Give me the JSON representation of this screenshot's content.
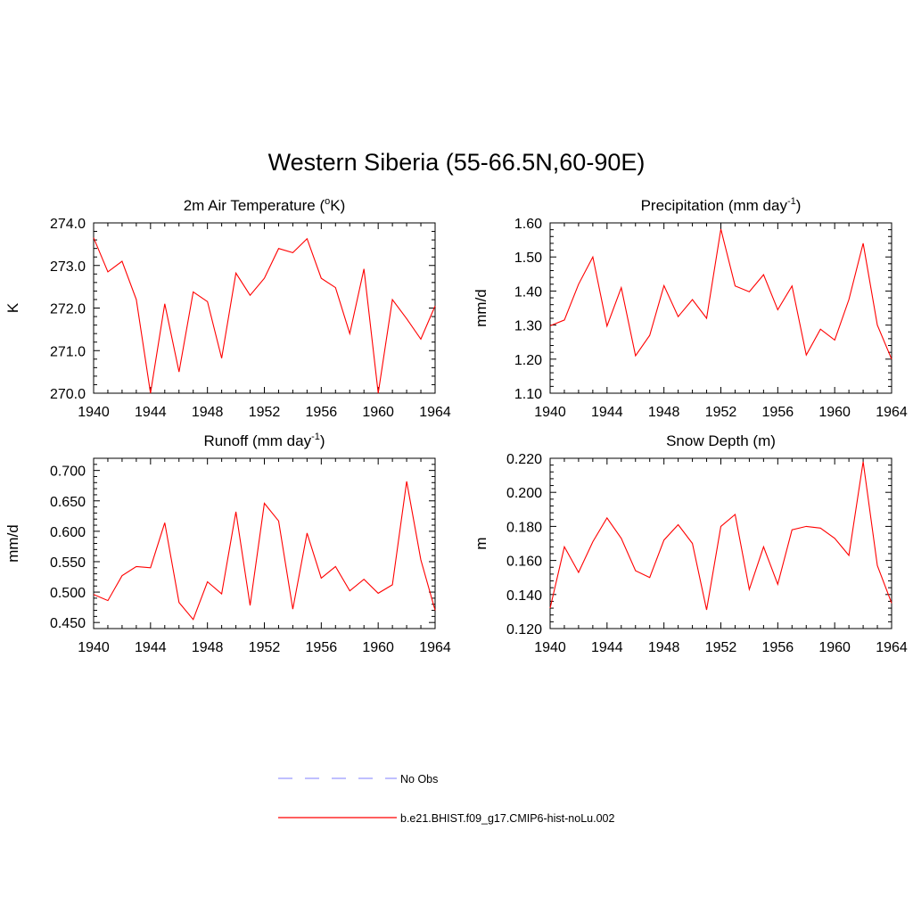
{
  "title": "Western Siberia (55-66.5N,60-90E)",
  "chart_data": [
    {
      "type": "line",
      "title": "2m Air Temperature (",
      "title_sup": "o",
      "title_after": "K)",
      "ylabel": "K",
      "xlim": [
        1940,
        1964
      ],
      "ylim": [
        270.0,
        274.0
      ],
      "yticks": [
        "270.0",
        "271.0",
        "272.0",
        "273.0",
        "274.0"
      ],
      "xticks": [
        "1940",
        "1944",
        "1948",
        "1952",
        "1956",
        "1960",
        "1964"
      ],
      "series": [
        {
          "color": "#ff0000",
          "x": [
            1940,
            1941,
            1942,
            1943,
            1944,
            1945,
            1946,
            1947,
            1948,
            1949,
            1950,
            1951,
            1952,
            1953,
            1954,
            1955,
            1956,
            1957,
            1958,
            1959,
            1960,
            1961,
            1962,
            1963,
            1964
          ],
          "values": [
            273.65,
            272.85,
            273.1,
            272.2,
            270.0,
            272.1,
            270.5,
            272.38,
            272.15,
            270.82,
            272.82,
            272.3,
            272.7,
            273.4,
            273.3,
            273.63,
            272.7,
            272.48,
            271.4,
            272.92,
            270.0,
            272.2,
            271.75,
            271.27,
            272.05
          ]
        }
      ]
    },
    {
      "type": "line",
      "title": "Precipitation (mm day",
      "title_sup": "-1",
      "title_after": ")",
      "ylabel": "mm/d",
      "xlim": [
        1940,
        1964
      ],
      "ylim": [
        1.1,
        1.6
      ],
      "yticks": [
        "1.10",
        "1.20",
        "1.30",
        "1.40",
        "1.50",
        "1.60"
      ],
      "xticks": [
        "1940",
        "1944",
        "1948",
        "1952",
        "1956",
        "1960",
        "1964"
      ],
      "series": [
        {
          "color": "#ff0000",
          "x": [
            1940,
            1941,
            1942,
            1943,
            1944,
            1945,
            1946,
            1947,
            1948,
            1949,
            1950,
            1951,
            1952,
            1953,
            1954,
            1955,
            1956,
            1957,
            1958,
            1959,
            1960,
            1961,
            1962,
            1963,
            1964
          ],
          "values": [
            1.298,
            1.315,
            1.42,
            1.5,
            1.297,
            1.41,
            1.21,
            1.27,
            1.416,
            1.325,
            1.375,
            1.32,
            1.582,
            1.415,
            1.398,
            1.448,
            1.345,
            1.415,
            1.212,
            1.288,
            1.256,
            1.375,
            1.54,
            1.3,
            1.2
          ]
        }
      ]
    },
    {
      "type": "line",
      "title": "Runoff (mm day",
      "title_sup": "-1",
      "title_after": ")",
      "ylabel": "mm/d",
      "xlim": [
        1940,
        1964
      ],
      "ylim": [
        0.44,
        0.72
      ],
      "yticks": [
        "0.450",
        "0.500",
        "0.550",
        "0.600",
        "0.650",
        "0.700"
      ],
      "xticks": [
        "1940",
        "1944",
        "1948",
        "1952",
        "1956",
        "1960",
        "1964"
      ],
      "series": [
        {
          "color": "#ff0000",
          "x": [
            1940,
            1941,
            1942,
            1943,
            1944,
            1945,
            1946,
            1947,
            1948,
            1949,
            1950,
            1951,
            1952,
            1953,
            1954,
            1955,
            1956,
            1957,
            1958,
            1959,
            1960,
            1961,
            1962,
            1963,
            1964
          ],
          "values": [
            0.496,
            0.486,
            0.527,
            0.542,
            0.54,
            0.614,
            0.483,
            0.455,
            0.517,
            0.497,
            0.632,
            0.478,
            0.646,
            0.617,
            0.472,
            0.597,
            0.523,
            0.542,
            0.502,
            0.521,
            0.498,
            0.512,
            0.682,
            0.553,
            0.47
          ]
        }
      ]
    },
    {
      "type": "line",
      "title": "Snow Depth (m)",
      "title_sup": "",
      "title_after": "",
      "ylabel": "m",
      "xlim": [
        1940,
        1964
      ],
      "ylim": [
        0.12,
        0.22
      ],
      "yticks": [
        "0.120",
        "0.140",
        "0.160",
        "0.180",
        "0.200",
        "0.220"
      ],
      "xticks": [
        "1940",
        "1944",
        "1948",
        "1952",
        "1956",
        "1960",
        "1964"
      ],
      "series": [
        {
          "color": "#ff0000",
          "x": [
            1940,
            1941,
            1942,
            1943,
            1944,
            1945,
            1946,
            1947,
            1948,
            1949,
            1950,
            1951,
            1952,
            1953,
            1954,
            1955,
            1956,
            1957,
            1958,
            1959,
            1960,
            1961,
            1962,
            1963,
            1964
          ],
          "values": [
            0.132,
            0.168,
            0.153,
            0.171,
            0.185,
            0.173,
            0.154,
            0.15,
            0.172,
            0.181,
            0.17,
            0.131,
            0.18,
            0.187,
            0.143,
            0.168,
            0.146,
            0.178,
            0.18,
            0.179,
            0.173,
            0.163,
            0.218,
            0.157,
            0.135
          ]
        }
      ]
    }
  ],
  "legend": {
    "items": [
      {
        "label": "No Obs",
        "color": "#9999ff",
        "dash": "dashed"
      },
      {
        "label": "b.e21.BHIST.f09_g17.CMIP6-hist-noLu.002",
        "color": "#ff0000",
        "dash": "solid"
      }
    ]
  }
}
